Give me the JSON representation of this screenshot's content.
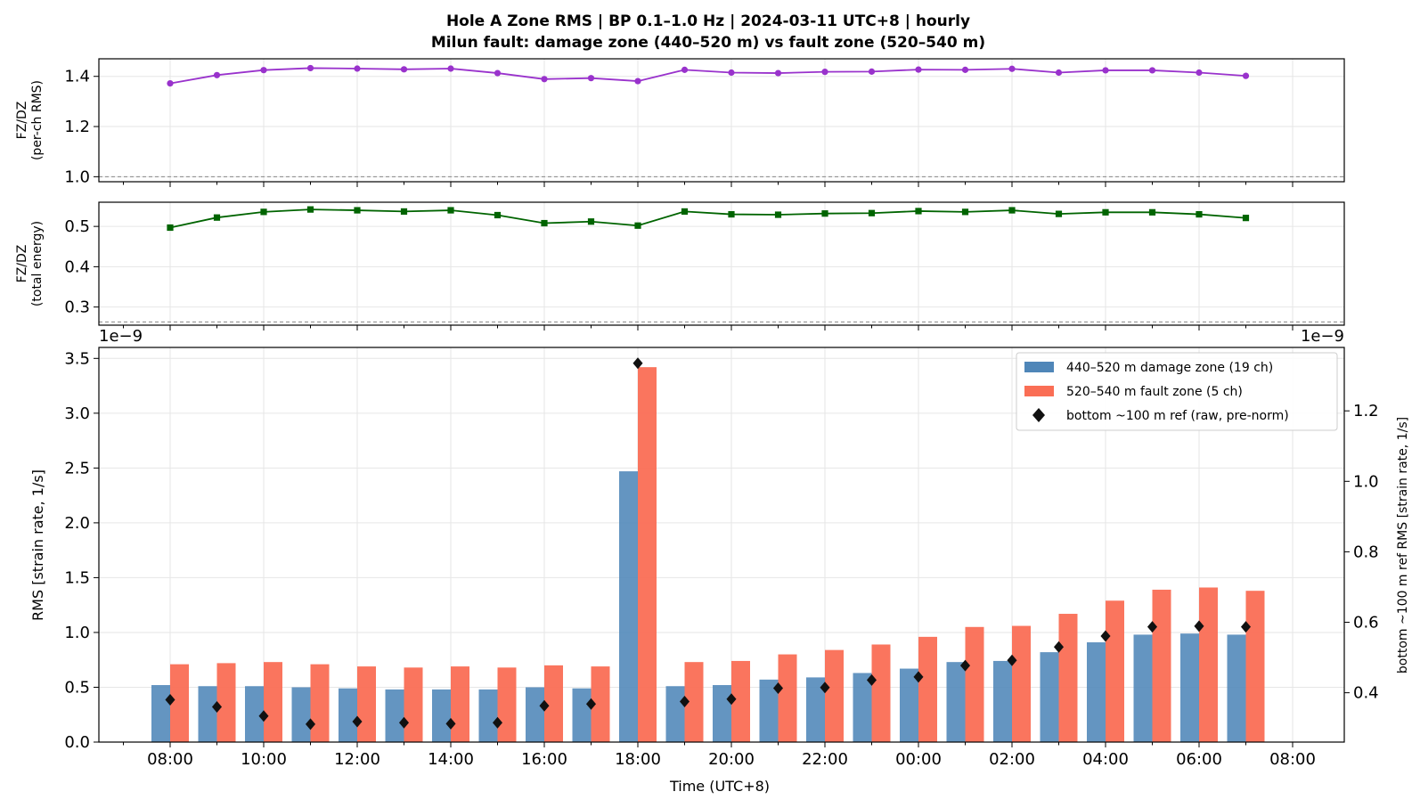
{
  "chart_data": {
    "title_line1": "Hole A Zone RMS  |  BP 0.1–1.0 Hz  |  2024-03-11 UTC+8  |  hourly",
    "title_line2": "Milun fault: damage zone (440–520 m) vs fault zone (520–540 m)",
    "hours": [
      "08:00",
      "09:00",
      "10:00",
      "11:00",
      "12:00",
      "13:00",
      "14:00",
      "15:00",
      "16:00",
      "17:00",
      "18:00",
      "19:00",
      "20:00",
      "21:00",
      "22:00",
      "23:00",
      "00:00",
      "01:00",
      "02:00",
      "03:00",
      "04:00",
      "05:00",
      "06:00",
      "07:00"
    ],
    "x_tick_labels": [
      "08:00",
      "10:00",
      "12:00",
      "14:00",
      "16:00",
      "18:00",
      "20:00",
      "22:00",
      "00:00",
      "02:00",
      "04:00",
      "06:00",
      "08:00"
    ],
    "xlabel": "Time (UTC+8)",
    "panels": [
      {
        "type": "line",
        "ylabel_line1": "FZ/DZ",
        "ylabel_line2": "(per-ch RMS)",
        "ylim": [
          0.98,
          1.47
        ],
        "yticks": [
          1.0,
          1.2,
          1.4
        ],
        "ytick_labels": [
          "1.0",
          "1.2",
          "1.4"
        ],
        "reference_line": 1.0,
        "color": "#9932cc",
        "marker": "circle",
        "values": [
          1.372,
          1.405,
          1.425,
          1.433,
          1.431,
          1.428,
          1.431,
          1.413,
          1.389,
          1.393,
          1.381,
          1.426,
          1.415,
          1.413,
          1.418,
          1.419,
          1.427,
          1.426,
          1.43,
          1.415,
          1.424,
          1.424,
          1.415,
          1.402
        ]
      },
      {
        "type": "line",
        "ylabel_line1": "FZ/DZ",
        "ylabel_line2": "(total energy)",
        "ylim": [
          0.255,
          0.56
        ],
        "yticks": [
          0.3,
          0.4,
          0.5
        ],
        "ytick_labels": [
          "0.3",
          "0.4",
          "0.5"
        ],
        "reference_line": 0.263,
        "color": "#006400",
        "marker": "square",
        "values": [
          0.497,
          0.522,
          0.536,
          0.542,
          0.54,
          0.537,
          0.54,
          0.528,
          0.508,
          0.512,
          0.502,
          0.537,
          0.53,
          0.529,
          0.532,
          0.533,
          0.538,
          0.536,
          0.54,
          0.531,
          0.535,
          0.535,
          0.53,
          0.521
        ]
      },
      {
        "type": "bar",
        "ylabel": "RMS  [strain rate, 1/s]",
        "y2label": "bottom ~100 m ref RMS  [strain rate, 1/s]",
        "offset_left": "1e−9",
        "offset_right": "1e−9",
        "ylim": [
          0,
          3.6
        ],
        "yticks": [
          0.0,
          0.5,
          1.0,
          1.5,
          2.0,
          2.5,
          3.0,
          3.5
        ],
        "ytick_labels": [
          "0.0",
          "0.5",
          "1.0",
          "1.5",
          "2.0",
          "2.5",
          "3.0",
          "3.5"
        ],
        "y2lim": [
          0.26,
          1.38
        ],
        "y2ticks": [
          0.4,
          0.6,
          0.8,
          1.0,
          1.2
        ],
        "y2tick_labels": [
          "0.4",
          "0.6",
          "0.8",
          "1.0",
          "1.2"
        ],
        "series": [
          {
            "name": "440–520 m  damage zone (19 ch)",
            "color": "#4f86b8",
            "values": [
              0.52,
              0.51,
              0.51,
              0.5,
              0.49,
              0.48,
              0.48,
              0.48,
              0.5,
              0.49,
              2.47,
              0.51,
              0.52,
              0.57,
              0.59,
              0.63,
              0.67,
              0.73,
              0.74,
              0.82,
              0.91,
              0.98,
              0.99,
              0.98
            ]
          },
          {
            "name": "520–540 m  fault zone (5 ch)",
            "color": "#fa6e55",
            "values": [
              0.71,
              0.72,
              0.73,
              0.71,
              0.69,
              0.68,
              0.69,
              0.68,
              0.7,
              0.69,
              3.42,
              0.73,
              0.74,
              0.8,
              0.84,
              0.89,
              0.96,
              1.05,
              1.06,
              1.17,
              1.29,
              1.39,
              1.41,
              1.38
            ]
          },
          {
            "name": "bottom ~100 m ref (raw, pre-norm)",
            "color": "#111111",
            "marker": "diamond",
            "axis": "right",
            "values": [
              0.38,
              0.36,
              0.334,
              0.311,
              0.318,
              0.315,
              0.312,
              0.315,
              0.363,
              0.368,
              1.335,
              0.375,
              0.382,
              0.413,
              0.415,
              0.436,
              0.445,
              0.477,
              0.492,
              0.53,
              0.561,
              0.587,
              0.589,
              0.587
            ]
          }
        ],
        "legend_position": "upper right"
      }
    ]
  }
}
